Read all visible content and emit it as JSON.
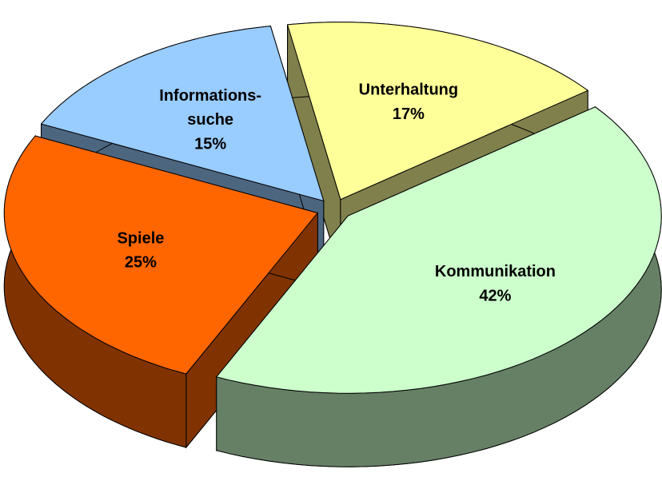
{
  "chart_data": {
    "type": "pie3d",
    "categories": [
      "Unterhaltung",
      "Kommunikation",
      "Spiele",
      "Informations-suche"
    ],
    "values": [
      17,
      42,
      25,
      15
    ],
    "value_labels": [
      "17%",
      "42%",
      "25%",
      "15%"
    ],
    "colors": [
      "#ffff99",
      "#ccffcc",
      "#ff6600",
      "#99ccff"
    ]
  }
}
